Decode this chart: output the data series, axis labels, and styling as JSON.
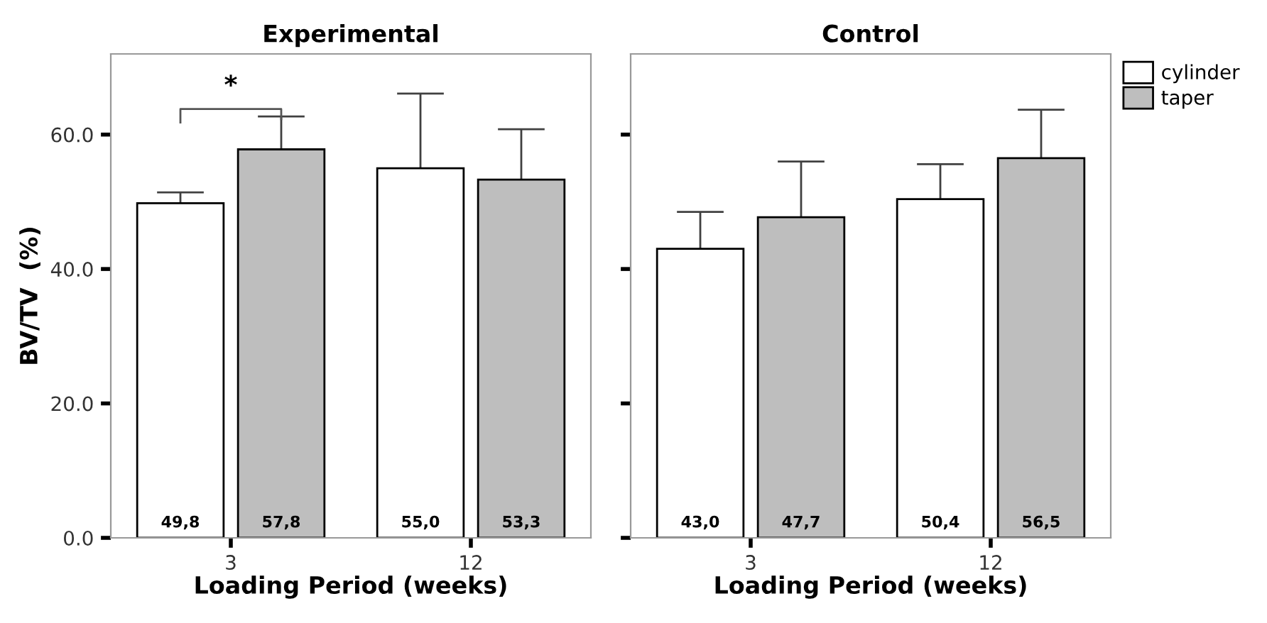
{
  "chart_data": [
    {
      "type": "bar",
      "title": "Experimental",
      "xlabel": "Loading Period (weeks)",
      "ylabel": "BV/TV  (%)",
      "categories": [
        "3",
        "12"
      ],
      "series": [
        {
          "color": "#ffffff",
          "values": [
            49.8,
            55.0
          ],
          "value_labels": [
            "49,8",
            "55,0"
          ],
          "errors": [
            [
              49.8,
              51.4
            ],
            [
              55.0,
              66.1
            ]
          ]
        },
        {
          "color": "#bebebe",
          "values": [
            57.8,
            53.3
          ],
          "value_labels": [
            "57,8",
            "53,3"
          ],
          "errors": [
            [
              57.8,
              62.7
            ],
            [
              53.3,
              60.8
            ]
          ]
        }
      ],
      "ylim": [
        0,
        72
      ],
      "yticks": [
        {
          "value": 0,
          "label": "0.0"
        },
        {
          "value": 20,
          "label": "20.0"
        },
        {
          "value": 40,
          "label": "40.0"
        },
        {
          "value": 60,
          "label": "60.0"
        }
      ],
      "annotations": [
        "*"
      ],
      "grid": false
    },
    {
      "type": "bar",
      "title": "Control",
      "xlabel": "Loading Period (weeks)",
      "categories": [
        "3",
        "12"
      ],
      "series": [
        {
          "name": "cylinder",
          "color": "#ffffff",
          "values": [
            43.0,
            50.4
          ],
          "value_labels": [
            "43,0",
            "50,4"
          ],
          "errors": [
            [
              43.0,
              48.5
            ],
            [
              50.4,
              55.6
            ]
          ]
        },
        {
          "name": "taper",
          "color": "#bebebe",
          "values": [
            47.7,
            56.5
          ],
          "value_labels": [
            "47,7",
            "56,5"
          ],
          "errors": [
            [
              47.7,
              56.0
            ],
            [
              56.5,
              63.7
            ]
          ]
        }
      ],
      "ylim": [
        0,
        72
      ],
      "yticks": [
        {
          "value": 0,
          "label": null
        },
        {
          "value": 20,
          "label": null
        },
        {
          "value": 40,
          "label": null
        },
        {
          "value": 60,
          "label": null
        }
      ],
      "tick_labels": "x",
      "grid": false,
      "legend": "top right"
    }
  ]
}
